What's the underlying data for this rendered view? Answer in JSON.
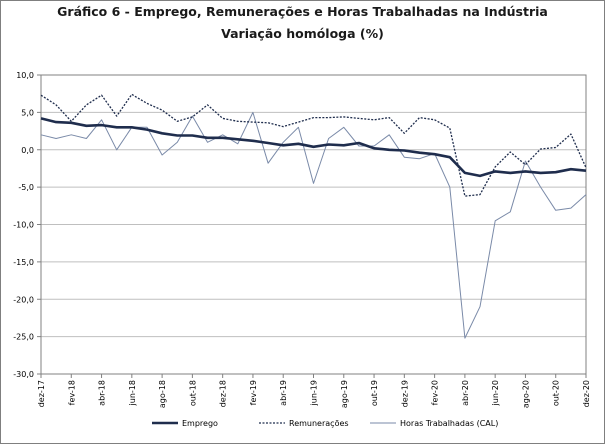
{
  "chart_data": {
    "type": "line",
    "title": "Gráfico 6 - Emprego, Remunerações e Horas Trabalhadas na Indústria",
    "subtitle": "Variação homóloga (%)",
    "xlabel": "",
    "ylabel": "",
    "ylim": [
      -30,
      10
    ],
    "yticks": [
      10,
      5,
      0,
      -5,
      -10,
      -15,
      -20,
      -25,
      -30
    ],
    "ytick_labels": [
      "10,0",
      "5,0",
      "0,0",
      "-5,0",
      "-10,0",
      "-15,0",
      "-20,0",
      "-25,0",
      "-30,0"
    ],
    "grid": true,
    "legend_position": "bottom",
    "x": [
      "dez-17",
      "jan-18",
      "fev-18",
      "mar-18",
      "abr-18",
      "mai-18",
      "jun-18",
      "jul-18",
      "ago-18",
      "set-18",
      "out-18",
      "nov-18",
      "dez-18",
      "jan-19",
      "fev-19",
      "mar-19",
      "abr-19",
      "mai-19",
      "jun-19",
      "jul-19",
      "ago-19",
      "set-19",
      "out-19",
      "nov-19",
      "dez-19",
      "jan-20",
      "fev-20",
      "mar-20",
      "abr-20",
      "mai-20",
      "jun-20",
      "jul-20",
      "ago-20",
      "set-20",
      "out-20",
      "nov-20",
      "dez-20"
    ],
    "xtick_labels": [
      "dez-17",
      "fev-18",
      "abr-18",
      "jun-18",
      "ago-18",
      "out-18",
      "dez-18",
      "fev-19",
      "abr-19",
      "jun-19",
      "ago-19",
      "out-19",
      "dez-19",
      "fev-20",
      "abr-20",
      "jun-20",
      "ago-20",
      "out-20",
      "dez-20"
    ],
    "series": [
      {
        "name": "Emprego",
        "color": "#1f2d4d",
        "style": "solid-thick",
        "values": [
          4.2,
          3.7,
          3.6,
          3.2,
          3.3,
          3.0,
          3.0,
          2.7,
          2.2,
          1.9,
          1.9,
          1.6,
          1.6,
          1.4,
          1.2,
          0.9,
          0.6,
          0.8,
          0.4,
          0.7,
          0.6,
          0.9,
          0.2,
          0.0,
          -0.1,
          -0.4,
          -0.6,
          -1.0,
          -3.1,
          -3.5,
          -2.9,
          -3.1,
          -2.9,
          -3.1,
          -3.0,
          -2.6,
          -2.8
        ]
      },
      {
        "name": "Remunerações",
        "color": "#1f2d4d",
        "style": "dotted",
        "values": [
          7.3,
          6.0,
          3.8,
          6.0,
          7.3,
          4.5,
          7.4,
          6.2,
          5.3,
          3.8,
          4.4,
          6.0,
          4.2,
          3.8,
          3.7,
          3.6,
          3.1,
          3.7,
          4.3,
          4.3,
          4.4,
          4.2,
          4.0,
          4.3,
          2.2,
          4.3,
          4.0,
          2.9,
          -6.2,
          -6.0,
          -2.3,
          -0.3,
          -2.0,
          0.1,
          0.3,
          2.1,
          -2.4
        ]
      },
      {
        "name": "Horas Trabalhadas (CAL)",
        "color": "#7a8aa8",
        "style": "solid-thin",
        "values": [
          2.0,
          1.5,
          2.0,
          1.5,
          4.0,
          0.0,
          3.0,
          3.0,
          -0.7,
          1.0,
          4.5,
          1.0,
          2.0,
          0.8,
          5.0,
          -1.8,
          1.0,
          3.0,
          -4.5,
          1.5,
          3.0,
          0.5,
          0.5,
          2.0,
          -1.0,
          -1.2,
          -0.5,
          -5.0,
          -25.2,
          -21.0,
          -9.5,
          -8.3,
          -1.5,
          -5.0,
          -8.1,
          -7.8,
          -6.0
        ]
      }
    ]
  }
}
